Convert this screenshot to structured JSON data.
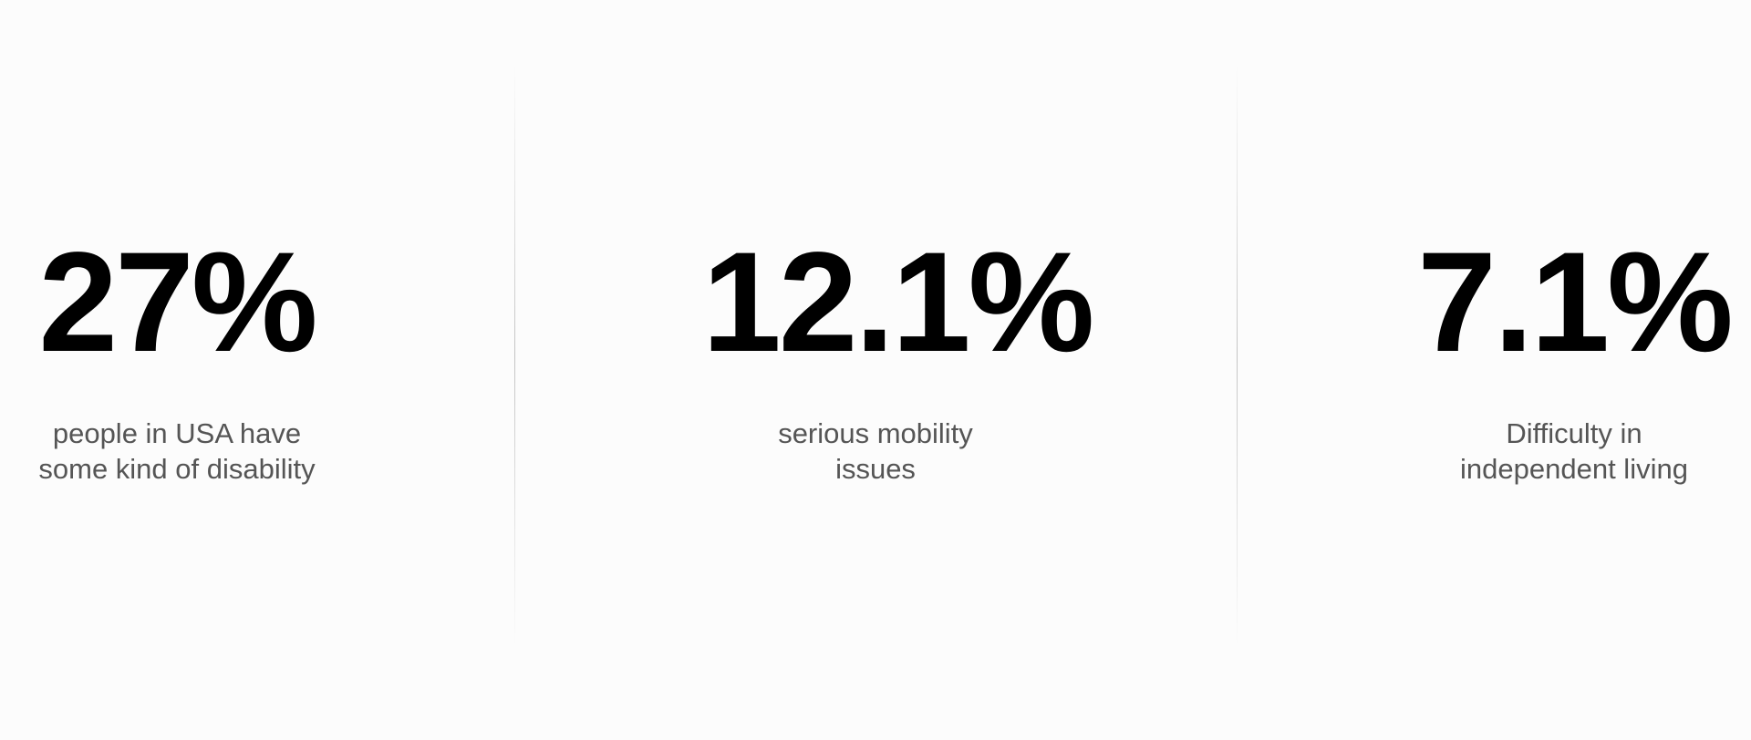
{
  "stats": [
    {
      "value": "27%",
      "label_line1": "people in USA have",
      "label_line2": "some kind of disability"
    },
    {
      "value": "12.1%",
      "label_line1": "serious mobility",
      "label_line2": "issues"
    },
    {
      "value": "7.1%",
      "label_line1": "Difficulty in",
      "label_line2": "independent living"
    }
  ],
  "colors": {
    "background": "#fcfcfc",
    "value_text": "#000000",
    "label_text": "#555555",
    "divider": "#c4c4c4"
  }
}
